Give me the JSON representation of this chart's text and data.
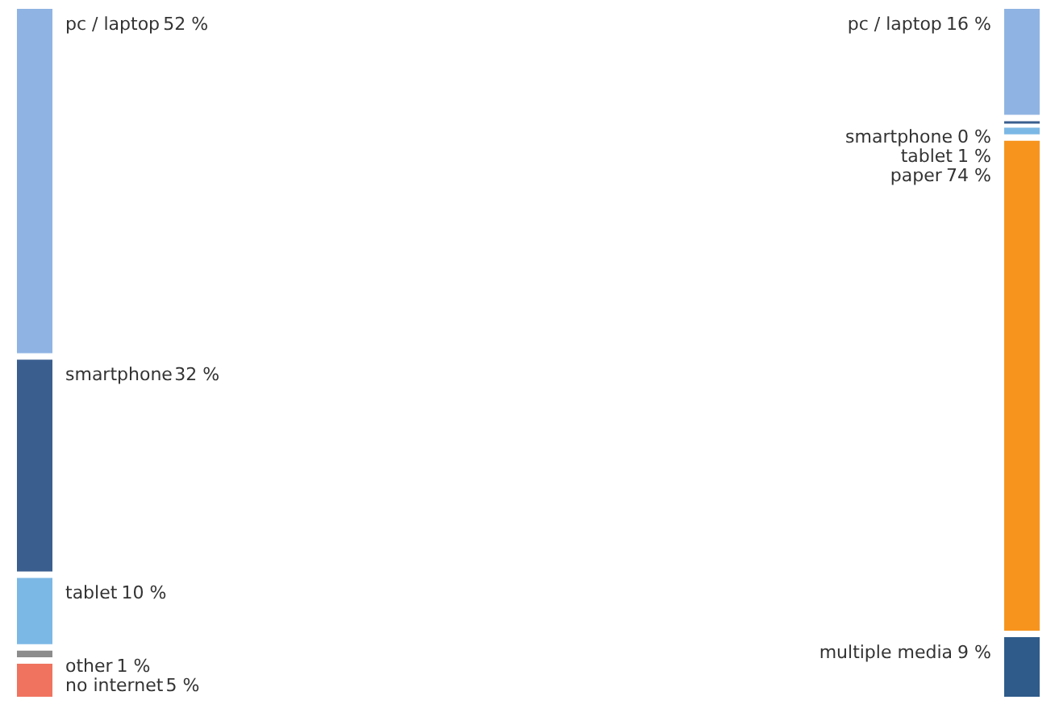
{
  "chart_data": {
    "type": "other",
    "categories": [
      "pc / laptop",
      "smartphone",
      "tablet",
      "other",
      "no internet",
      "pc / laptop",
      "smartphone",
      "tablet",
      "paper",
      "multiple media"
    ],
    "values": [
      52,
      32,
      10,
      1,
      5,
      16,
      0,
      1,
      74,
      9
    ],
    "value_labels": [
      "52 %",
      "32 %",
      "10 %",
      "1 %",
      "5 %",
      "16 %",
      "0 %",
      "1 %",
      "74 %",
      "9 %"
    ],
    "colors": [
      "#8fb4e3",
      "#3a5f8f",
      "#7cb8e6",
      "#8c8c8c",
      "#f0735f",
      "#8fb4e3",
      "#3a5f8f",
      "#7cb8e6",
      "#f7941d",
      "#2e5b8a"
    ]
  }
}
